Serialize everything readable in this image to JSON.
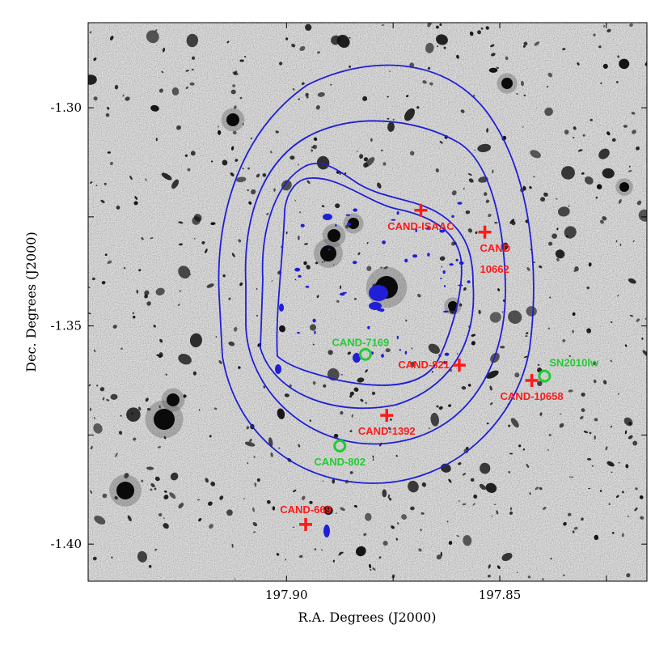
{
  "figure": {
    "xlabel": "R.A. Degrees (J2000)",
    "ylabel": "Dec. Degrees (J2000)",
    "xticks": [
      {
        "value": 197.9,
        "label": "197.90"
      },
      {
        "value": 197.875,
        "label": ""
      },
      {
        "value": 197.85,
        "label": "197.85"
      },
      {
        "value": 197.825,
        "label": ""
      }
    ],
    "yticks": [
      {
        "value": -1.3,
        "label": "-1.30"
      },
      {
        "value": -1.325,
        "label": ""
      },
      {
        "value": -1.35,
        "label": "-1.35"
      },
      {
        "value": -1.375,
        "label": ""
      },
      {
        "value": -1.4,
        "label": "-1.40"
      }
    ],
    "xlim": [
      197.9465,
      197.8155
    ],
    "ylim": [
      -1.4085,
      -1.2805
    ],
    "colors": {
      "contour": "#1f1fd6",
      "candidate": "#ff1a1a",
      "supernova": "#22cc33",
      "background": "#dedede"
    },
    "markers": [
      {
        "name": "CAND-ISAAC",
        "ra": 197.8685,
        "dec": -1.3235,
        "symbol": "cross",
        "color": "#ff1a1a",
        "label": "CAND-ISAAC",
        "label_pos": "below"
      },
      {
        "name": "CAND-10662",
        "ra": 197.8535,
        "dec": -1.3285,
        "symbol": "cross",
        "color": "#ff1a1a",
        "label": "CAND\n10662",
        "label_pos": "below-right"
      },
      {
        "name": "CAND-7169",
        "ra": 197.8815,
        "dec": -1.3565,
        "symbol": "circle",
        "color": "#22cc33",
        "label": "CAND-7169",
        "label_pos": "above-left"
      },
      {
        "name": "CAND-821",
        "ra": 197.8595,
        "dec": -1.359,
        "symbol": "cross",
        "color": "#ff1a1a",
        "label": "CAND-821",
        "label_pos": "left"
      },
      {
        "name": "SN2010lw",
        "ra": 197.8395,
        "dec": -1.3615,
        "symbol": "circle",
        "color": "#22cc33",
        "label": "SN2010lw",
        "label_pos": "right"
      },
      {
        "name": "CAND-10658",
        "ra": 197.8425,
        "dec": -1.3625,
        "symbol": "cross",
        "color": "#ff1a1a",
        "label": "CAND-10658",
        "label_pos": "below"
      },
      {
        "name": "CAND-1392",
        "ra": 197.8765,
        "dec": -1.3705,
        "symbol": "cross",
        "color": "#ff1a1a",
        "label": "CAND-1392",
        "label_pos": "below"
      },
      {
        "name": "CAND-802",
        "ra": 197.8875,
        "dec": -1.3775,
        "symbol": "circle",
        "color": "#22cc33",
        "label": "CAND-802",
        "label_pos": "below"
      },
      {
        "name": "CAND-669",
        "ra": 197.8955,
        "dec": -1.3955,
        "symbol": "cross",
        "color": "#ff1a1a",
        "label": "CAND-669",
        "label_pos": "above"
      }
    ]
  }
}
